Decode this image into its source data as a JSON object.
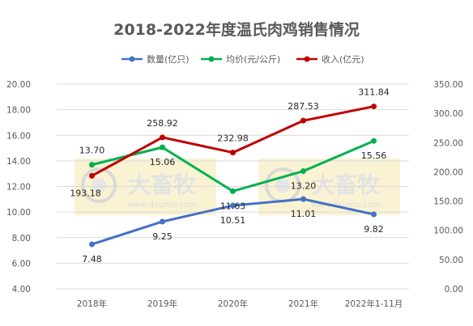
{
  "chart_data": {
    "type": "line",
    "title": "2018-2022年度温氏肉鸡销售情况",
    "categories": [
      "2018年",
      "2019年",
      "2020年",
      "2021年",
      "2022年1-11月"
    ],
    "y_left": {
      "min": 4,
      "max": 20,
      "step": 2,
      "decimals": 2
    },
    "y_right": {
      "min": 0,
      "max": 350,
      "step": 50,
      "decimals": 2
    },
    "legend_position": "top",
    "grid": true,
    "series": [
      {
        "name": "数量(亿只)",
        "axis": "left",
        "color": "#4472c4",
        "values": [
          7.48,
          9.25,
          10.51,
          11.01,
          9.82
        ],
        "labels": [
          "7.48",
          "9.25",
          "10.51",
          "11.01",
          "9.82"
        ]
      },
      {
        "name": "均价(元/公斤)",
        "axis": "left",
        "color": "#00b050",
        "values": [
          13.7,
          15.06,
          11.63,
          13.2,
          15.56
        ],
        "labels": [
          "13.70",
          "15.06",
          "11.63",
          "13.20",
          "15.56"
        ]
      },
      {
        "name": "收入(亿元)",
        "axis": "right",
        "color": "#c00000",
        "values": [
          193.18,
          258.92,
          232.98,
          287.53,
          311.84
        ],
        "labels": [
          "193.18",
          "258.92",
          "232.98",
          "287.53",
          "311.84"
        ]
      }
    ]
  },
  "watermark": {
    "text": "大畜牧",
    "url": "www.dxumu.com"
  }
}
